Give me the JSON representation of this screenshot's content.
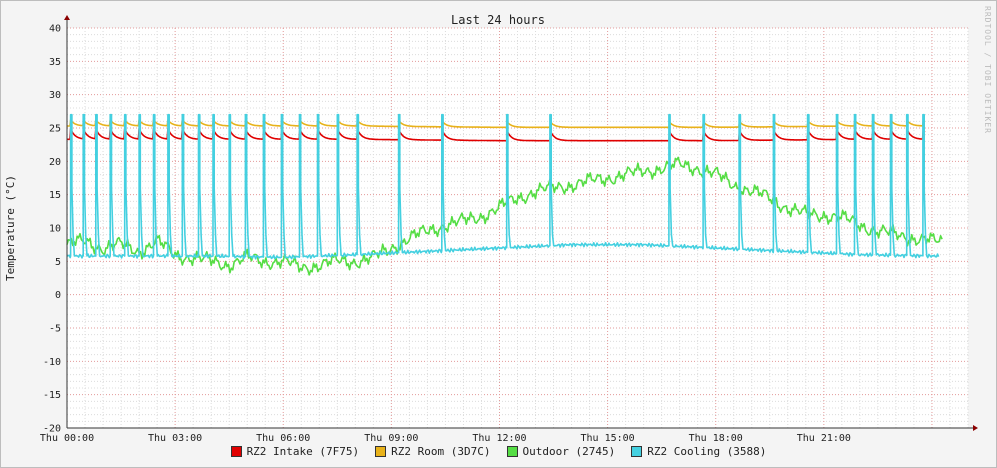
{
  "chart_data": {
    "type": "line",
    "title": "Last 24 hours",
    "ylabel": "Temperature (°C)",
    "watermark": "RRDTOOL / TOBI OETIKER",
    "ylim": [
      -20,
      40
    ],
    "y_ticks": [
      "40",
      "35",
      "30",
      "25",
      "20",
      "15",
      "10",
      "5",
      "0",
      "-5",
      "-10",
      "-15",
      "-20"
    ],
    "xlim_hours": [
      0,
      25
    ],
    "x_ticks": [
      {
        "h": 0,
        "label": "Thu 00:00"
      },
      {
        "h": 3,
        "label": "Thu 03:00"
      },
      {
        "h": 6,
        "label": "Thu 06:00"
      },
      {
        "h": 9,
        "label": "Thu 09:00"
      },
      {
        "h": 12,
        "label": "Thu 12:00"
      },
      {
        "h": 15,
        "label": "Thu 15:00"
      },
      {
        "h": 18,
        "label": "Thu 18:00"
      },
      {
        "h": 21,
        "label": "Thu 21:00"
      }
    ],
    "grid": true,
    "legend_position": "bottom",
    "cycle_hours": [
      0.1,
      0.45,
      0.8,
      1.2,
      1.6,
      2.0,
      2.4,
      2.8,
      3.2,
      3.65,
      4.05,
      4.5,
      4.95,
      5.45,
      5.95,
      6.45,
      6.95,
      7.5,
      8.05,
      9.2,
      10.4,
      12.2,
      13.4,
      16.7,
      17.65,
      18.65,
      19.6,
      20.55,
      21.35,
      21.85,
      22.35,
      22.85,
      23.3,
      23.75,
      24.2
    ],
    "series": [
      {
        "name": "RZ2 Intake (7F75)",
        "color": "#e00000",
        "x": [
          0,
          2,
          4,
          6,
          8,
          10,
          12,
          14,
          16,
          18,
          20,
          22,
          23.8
        ],
        "y": [
          23.3,
          23.3,
          23.3,
          23.3,
          23.3,
          23.2,
          23.1,
          23.1,
          23.1,
          23.1,
          23.2,
          23.3,
          23.3
        ]
      },
      {
        "name": "RZ2 Room (3D7C)",
        "color": "#e8b21a",
        "x": [
          0,
          2,
          4,
          6,
          8,
          10,
          12,
          14,
          16,
          18,
          20,
          22,
          23.8
        ],
        "y": [
          25.3,
          25.3,
          25.3,
          25.3,
          25.3,
          25.2,
          25.1,
          25.1,
          25.1,
          25.1,
          25.2,
          25.3,
          25.3
        ]
      },
      {
        "name": "Outdoor (2745)",
        "color": "#55dd44",
        "x": [
          0,
          0.5,
          1,
          1.5,
          2,
          2.5,
          3,
          3.5,
          4,
          4.5,
          5,
          5.5,
          6,
          6.5,
          7,
          7.5,
          8,
          8.5,
          9,
          9.5,
          10,
          10.5,
          11,
          11.5,
          12,
          12.5,
          13,
          13.5,
          14,
          14.5,
          15,
          15.5,
          16,
          16.5,
          17,
          17.5,
          18,
          18.5,
          19,
          19.5,
          20,
          20.5,
          21,
          21.5,
          22,
          22.5,
          23,
          23.5,
          24
        ],
        "y": [
          7.5,
          8,
          7,
          7.5,
          6.5,
          8,
          6,
          5.5,
          5,
          4.5,
          5.5,
          5,
          5,
          4,
          4.5,
          5,
          5,
          5.5,
          7,
          8.5,
          9.5,
          10.5,
          11,
          11.8,
          13,
          14.5,
          15.5,
          16,
          16.5,
          17,
          17.5,
          18,
          18.5,
          19,
          19.5,
          19,
          18,
          16.5,
          15.5,
          14.5,
          13,
          12,
          12,
          11.5,
          10.5,
          9.5,
          9,
          8.5,
          8
        ]
      },
      {
        "name": "RZ2 Cooling (3588)",
        "color": "#44d0e0",
        "x": [
          0,
          2,
          4,
          6,
          8,
          10,
          12,
          14,
          16,
          18,
          20,
          22,
          24
        ],
        "y": [
          5.8,
          5.8,
          5.8,
          5.6,
          6,
          6.5,
          7,
          7.5,
          7.5,
          7,
          6.5,
          6,
          5.8
        ],
        "peak": 27
      }
    ]
  }
}
